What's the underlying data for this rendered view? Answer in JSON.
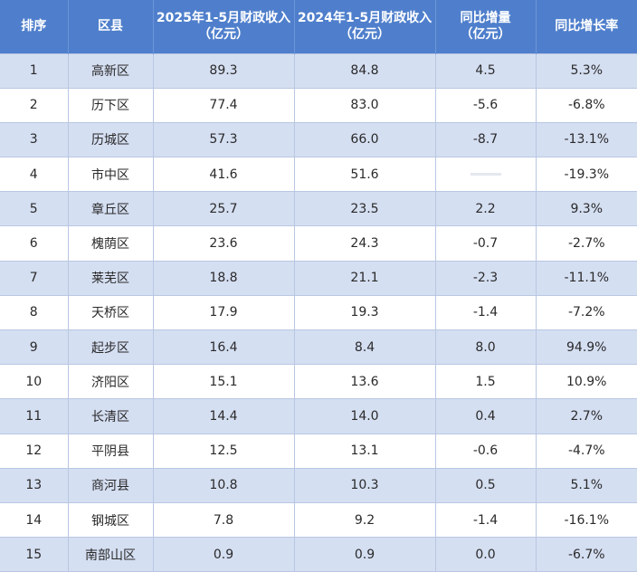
{
  "table": {
    "headers": [
      {
        "lines": [
          "排序"
        ]
      },
      {
        "lines": [
          "区县"
        ]
      },
      {
        "lines": [
          "2025年1-5月财政收入",
          "（亿元）"
        ]
      },
      {
        "lines": [
          "2024年1-5月财政收入",
          "（亿元）"
        ]
      },
      {
        "lines": [
          "同比增量",
          "（亿元）"
        ]
      },
      {
        "lines": [
          "同比增长率"
        ]
      }
    ],
    "rows": [
      [
        "1",
        "高新区",
        "89.3",
        "84.8",
        "4.5",
        "5.3%"
      ],
      [
        "2",
        "历下区",
        "77.4",
        "83.0",
        "-5.6",
        "-6.8%"
      ],
      [
        "3",
        "历城区",
        "57.3",
        "66.0",
        "-8.7",
        "-13.1%"
      ],
      [
        "4",
        "市中区",
        "41.6",
        "51.6",
        "",
        "-19.3%"
      ],
      [
        "5",
        "章丘区",
        "25.7",
        "23.5",
        "2.2",
        "9.3%"
      ],
      [
        "6",
        "槐荫区",
        "23.6",
        "24.3",
        "-0.7",
        "-2.7%"
      ],
      [
        "7",
        "莱芜区",
        "18.8",
        "21.1",
        "-2.3",
        "-11.1%"
      ],
      [
        "8",
        "天桥区",
        "17.9",
        "19.3",
        "-1.4",
        "-7.2%"
      ],
      [
        "9",
        "起步区",
        "16.4",
        "8.4",
        "8.0",
        "94.9%"
      ],
      [
        "10",
        "济阳区",
        "15.1",
        "13.6",
        "1.5",
        "10.9%"
      ],
      [
        "11",
        "长清区",
        "14.4",
        "14.0",
        "0.4",
        "2.7%"
      ],
      [
        "12",
        "平阴县",
        "12.5",
        "13.1",
        "-0.6",
        "-4.7%"
      ],
      [
        "13",
        "商河县",
        "10.8",
        "10.3",
        "0.5",
        "5.1%"
      ],
      [
        "14",
        "钢城区",
        "7.8",
        "9.2",
        "-1.4",
        "-16.1%"
      ],
      [
        "15",
        "南部山区",
        "0.9",
        "0.9",
        "0.0",
        "-6.7%"
      ]
    ]
  },
  "colors": {
    "header_bg": "#4f7fcc",
    "header_text": "#ffffff",
    "stripe_bg": "#d5dff2",
    "row_bg": "#ffffff",
    "grid_line": "#b9c7e3"
  }
}
